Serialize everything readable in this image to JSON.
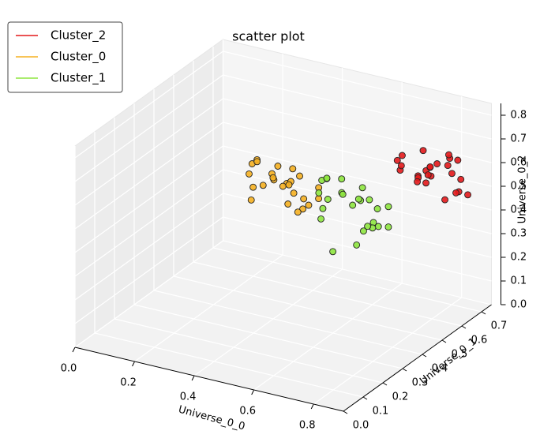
{
  "chart_data": {
    "type": "scatter3d",
    "title": "scatter plot",
    "xlabel": "Universe_0_0",
    "ylabel": "Universe_0_1",
    "zlabel": "Universe_0_2",
    "xlim": [
      0,
      0.9
    ],
    "ylim": [
      0,
      0.75
    ],
    "zlim": [
      0,
      0.85
    ],
    "xticks": [
      {
        "value": 0,
        "label": "0.0"
      },
      0.2,
      0.4,
      0.6,
      0.8
    ],
    "yticks": [
      {
        "value": 0,
        "label": "0.0"
      },
      0.1,
      0.2,
      0.3,
      0.4,
      0.5,
      0.6,
      0.7
    ],
    "zticks": [
      {
        "value": 0,
        "label": "0.0"
      },
      0.1,
      0.2,
      0.3,
      0.4,
      0.5,
      0.6,
      0.7,
      0.8
    ],
    "grid": true,
    "legend": "upper left",
    "series": [
      {
        "name": "Cluster_2",
        "color": "#e31a1c",
        "x": [
          0.78,
          0.85,
          0.72,
          0.88,
          0.8,
          0.75,
          0.83,
          0.9,
          0.7,
          0.79,
          0.86,
          0.77,
          0.82,
          0.74,
          0.89,
          0.81,
          0.76,
          0.84,
          0.73,
          0.87,
          0.8,
          0.78,
          0.83,
          0.92,
          0.68
        ],
        "y": [
          0.6,
          0.55,
          0.65,
          0.58,
          0.68,
          0.52,
          0.62,
          0.57,
          0.6,
          0.7,
          0.5,
          0.64,
          0.56,
          0.66,
          0.61,
          0.54,
          0.59,
          0.67,
          0.53,
          0.63,
          0.58,
          0.72,
          0.48,
          0.6,
          0.62
        ],
        "z": [
          0.62,
          0.7,
          0.55,
          0.65,
          0.6,
          0.68,
          0.5,
          0.58,
          0.66,
          0.63,
          0.72,
          0.57,
          0.67,
          0.52,
          0.61,
          0.75,
          0.59,
          0.64,
          0.69,
          0.54,
          0.62,
          0.6,
          0.66,
          0.56,
          0.58
        ]
      },
      {
        "name": "Cluster_0",
        "color": "#f5b021",
        "x": [
          0.3,
          0.25,
          0.35,
          0.2,
          0.38,
          0.28,
          0.32,
          0.22,
          0.4,
          0.27,
          0.33,
          0.18,
          0.36,
          0.29,
          0.24,
          0.31,
          0.42,
          0.26,
          0.34,
          0.21,
          0.3,
          0.37,
          0.23,
          0.28,
          0.32
        ],
        "y": [
          0.6,
          0.65,
          0.55,
          0.62,
          0.58,
          0.68,
          0.52,
          0.57,
          0.63,
          0.59,
          0.66,
          0.61,
          0.54,
          0.7,
          0.56,
          0.64,
          0.6,
          0.5,
          0.67,
          0.58,
          0.62,
          0.57,
          0.66,
          0.53,
          0.61
        ],
        "z": [
          0.41,
          0.45,
          0.38,
          0.48,
          0.35,
          0.43,
          0.5,
          0.4,
          0.37,
          0.46,
          0.33,
          0.42,
          0.47,
          0.39,
          0.52,
          0.36,
          0.44,
          0.4,
          0.3,
          0.49,
          0.41,
          0.34,
          0.38,
          0.45,
          0.43
        ]
      },
      {
        "name": "Cluster_1",
        "color": "#8ee53f",
        "x": [
          0.6,
          0.55,
          0.65,
          0.5,
          0.68,
          0.58,
          0.62,
          0.52,
          0.7,
          0.57,
          0.63,
          0.48,
          0.66,
          0.59,
          0.54,
          0.61,
          0.72,
          0.56,
          0.64,
          0.51,
          0.6,
          0.67,
          0.53,
          0.58,
          0.62
        ],
        "y": [
          0.5,
          0.45,
          0.55,
          0.52,
          0.48,
          0.58,
          0.42,
          0.47,
          0.53,
          0.49,
          0.56,
          0.51,
          0.44,
          0.6,
          0.46,
          0.54,
          0.5,
          0.4,
          0.57,
          0.48,
          0.52,
          0.47,
          0.55,
          0.43,
          0.51
        ],
        "z": [
          0.48,
          0.52,
          0.45,
          0.55,
          0.42,
          0.5,
          0.58,
          0.46,
          0.4,
          0.53,
          0.38,
          0.49,
          0.56,
          0.44,
          0.6,
          0.35,
          0.51,
          0.47,
          0.36,
          0.57,
          0.3,
          0.43,
          0.54,
          0.32,
          0.5
        ]
      }
    ]
  }
}
